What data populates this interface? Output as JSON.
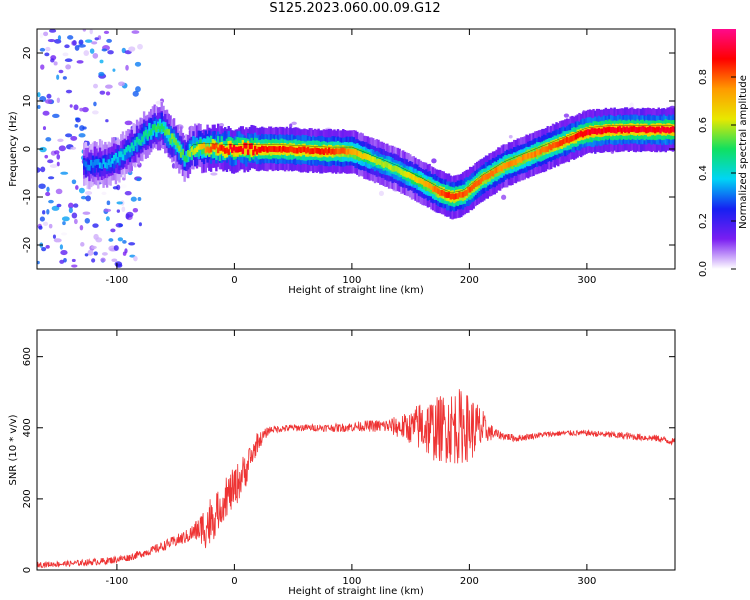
{
  "title": "S125.2023.060.00.09.G12",
  "chart_data": [
    {
      "type": "heatmap",
      "xlabel": "Height of straight line (km)",
      "ylabel": "Frequency (Hz)",
      "xlim": [
        -168,
        375
      ],
      "ylim": [
        -25,
        25
      ],
      "xticks": [
        -100,
        0,
        100,
        200,
        300
      ],
      "yticks": [
        -20,
        -10,
        0,
        10,
        20
      ],
      "colorbar": {
        "label": "Normalized spectral amplitude",
        "ticks": [
          "0.0",
          "0.2",
          "0.4",
          "0.6",
          "0.8"
        ],
        "range": [
          0,
          1
        ],
        "colors": [
          "#ffffff",
          "#7a1ef2",
          "#1620f2",
          "#00d5f5",
          "#10e060",
          "#e8e800",
          "#ff9a00",
          "#ff0000",
          "#ff0a8c"
        ]
      },
      "ridge": {
        "x": [
          -130,
          -110,
          -95,
          -80,
          -70,
          -62,
          -55,
          -48,
          -42,
          -35,
          -30,
          -20,
          0,
          40,
          80,
          100,
          120,
          140,
          160,
          175,
          185,
          195,
          210,
          230,
          250,
          270,
          290,
          300,
          320,
          350,
          375
        ],
        "y": [
          -3.5,
          -3,
          -1.5,
          2,
          4,
          5,
          2.5,
          0.5,
          -2,
          0,
          0.2,
          0.2,
          0,
          0,
          -0.5,
          -0.5,
          -2.5,
          -4.5,
          -7,
          -9,
          -10,
          -9.5,
          -6.5,
          -3.5,
          -1.5,
          0.5,
          2.5,
          3.5,
          4,
          4,
          4
        ],
        "amp": [
          0.3,
          0.35,
          0.4,
          0.45,
          0.5,
          0.5,
          0.55,
          0.55,
          0.5,
          0.6,
          0.65,
          0.8,
          0.9,
          0.85,
          0.85,
          0.75,
          0.6,
          0.6,
          0.7,
          0.8,
          0.85,
          0.8,
          0.8,
          0.75,
          0.75,
          0.8,
          0.85,
          0.9,
          0.9,
          0.9,
          0.9
        ]
      }
    },
    {
      "type": "line",
      "xlabel": "Height of straight line (km)",
      "ylabel": "SNR (10 * v/v)",
      "xlim": [
        -168,
        375
      ],
      "ylim": [
        0,
        675
      ],
      "xticks": [
        -100,
        0,
        100,
        200,
        300
      ],
      "yticks": [
        0,
        200,
        400,
        600
      ],
      "color": "#ee3333",
      "series": [
        {
          "x": [
            -168,
            -140,
            -110,
            -90,
            -70,
            -55,
            -40,
            -30,
            -22,
            -15,
            -8,
            0,
            10,
            20,
            30,
            50,
            70,
            90,
            110,
            130,
            150,
            160,
            170,
            180,
            190,
            200,
            210,
            215,
            225,
            240,
            260,
            280,
            300,
            320,
            340,
            360,
            375
          ],
          "mean": [
            15,
            18,
            25,
            35,
            55,
            75,
            95,
            115,
            130,
            160,
            200,
            230,
            285,
            360,
            395,
            400,
            400,
            400,
            405,
            405,
            400,
            405,
            395,
            400,
            405,
            400,
            395,
            390,
            380,
            370,
            380,
            385,
            385,
            380,
            375,
            370,
            360
          ],
          "noise": [
            8,
            8,
            10,
            10,
            12,
            15,
            20,
            35,
            80,
            55,
            55,
            60,
            50,
            25,
            10,
            10,
            10,
            12,
            15,
            20,
            45,
            80,
            90,
            100,
            110,
            95,
            70,
            30,
            12,
            10,
            8,
            8,
            8,
            10,
            10,
            10,
            10
          ]
        }
      ]
    }
  ]
}
